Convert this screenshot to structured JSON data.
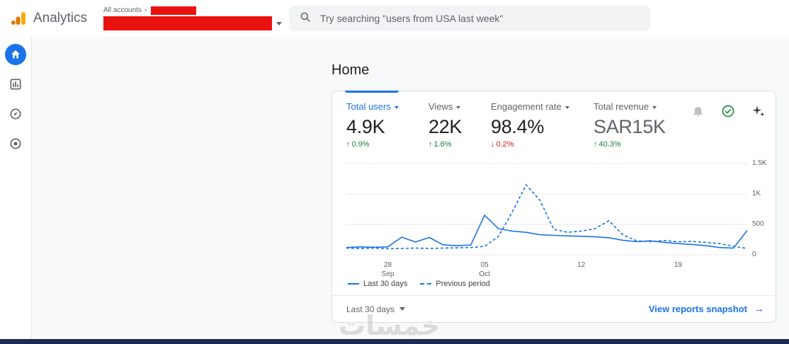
{
  "colors": {
    "accent": "#1a73e8",
    "positive": "#188038",
    "negative": "#c5221f",
    "redaction": "#ea1111",
    "chart_line": "#1a73e8",
    "grid_line": "#e8eaed",
    "bottom_bar": "#1d2b50"
  },
  "topbar": {
    "brand": "Analytics",
    "breadcrumb": "All accounts",
    "search_placeholder": "Try searching \"users from USA last week\""
  },
  "sidebar": {
    "items": [
      {
        "icon": "home-icon",
        "active": true
      },
      {
        "icon": "reports-icon",
        "active": false
      },
      {
        "icon": "explore-icon",
        "active": false
      },
      {
        "icon": "advertising-icon",
        "active": false
      }
    ]
  },
  "main": {
    "title": "Home",
    "card": {
      "metrics": [
        {
          "label": "Total users",
          "value": "4.9K",
          "arrow": "↑",
          "delta": "0.9%",
          "label_color": "#1a73e8",
          "value_color": "#202124",
          "delta_color": "#188038"
        },
        {
          "label": "Views",
          "value": "22K",
          "arrow": "↑",
          "delta": "1.6%",
          "label_color": "#5f6368",
          "value_color": "#202124",
          "delta_color": "#188038"
        },
        {
          "label": "Engagement rate",
          "value": "98.4%",
          "arrow": "↓",
          "delta": "0.2%",
          "label_color": "#5f6368",
          "value_color": "#202124",
          "delta_color": "#c5221f"
        },
        {
          "label": "Total revenue",
          "value": "SAR15K",
          "arrow": "↑",
          "delta": "40.3%",
          "label_color": "#5f6368",
          "value_color": "#5f6368",
          "delta_color": "#188038"
        }
      ],
      "header_icons": [
        "insights-bell-icon",
        "check-circle-icon",
        "sparkle-icon"
      ],
      "legend": [
        {
          "label": "Last 30 days",
          "dashed": false
        },
        {
          "label": "Previous period",
          "dashed": true
        }
      ],
      "footer": {
        "range_label": "Last 30 days",
        "link_label": "View reports snapshot"
      }
    }
  },
  "watermark": "خمسات",
  "icons": {
    "arrow_right": "→",
    "breadcrumb_chevron": "›"
  },
  "chart_data": {
    "type": "line",
    "title": "",
    "xlabel": "",
    "ylabel": "",
    "ylim": [
      0,
      1500
    ],
    "grid": true,
    "legend_position": "bottom-left",
    "yticks": [
      {
        "v": 1500,
        "label": "1.5K"
      },
      {
        "v": 1000,
        "label": "1K"
      },
      {
        "v": 500,
        "label": "500"
      },
      {
        "v": 0,
        "label": "0"
      }
    ],
    "xticks": [
      {
        "i": 3,
        "label": "28\nSep"
      },
      {
        "i": 10,
        "label": "05\nOct"
      },
      {
        "i": 17,
        "label": "12"
      },
      {
        "i": 24,
        "label": "19"
      }
    ],
    "series": [
      {
        "name": "Last 30 days",
        "dashed": false,
        "values": [
          120,
          130,
          125,
          130,
          290,
          210,
          285,
          165,
          150,
          160,
          650,
          430,
          390,
          370,
          330,
          320,
          310,
          305,
          295,
          280,
          240,
          215,
          230,
          205,
          185,
          170,
          150,
          120,
          110,
          400
        ]
      },
      {
        "name": "Previous period",
        "dashed": true,
        "values": [
          110,
          105,
          110,
          100,
          105,
          110,
          105,
          110,
          115,
          120,
          140,
          300,
          700,
          1150,
          900,
          420,
          370,
          390,
          430,
          560,
          330,
          230,
          215,
          235,
          215,
          220,
          205,
          185,
          140,
          105
        ]
      }
    ]
  }
}
